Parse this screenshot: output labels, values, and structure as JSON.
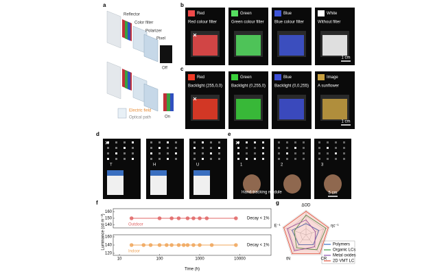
{
  "panels": {
    "a": {
      "label": "a",
      "texts": [
        "Reflector",
        "Color filter",
        "Polarizer",
        "Pixel",
        "Off",
        "On",
        "Electric field",
        "Optical path"
      ]
    },
    "b": {
      "label": "b",
      "items": [
        {
          "name": "Red",
          "caption": "Red colour filter",
          "color": "#ef4a4a"
        },
        {
          "name": "Green",
          "caption": "Green colour filter",
          "color": "#55de60"
        },
        {
          "name": "Blue",
          "caption": "Blue colour filter",
          "color": "#3e55d8"
        },
        {
          "name": "White",
          "caption": "Without filter",
          "color": "#ffffff"
        }
      ],
      "scale": "1 cm"
    },
    "c": {
      "label": "c",
      "items": [
        {
          "name": "Red",
          "caption": "Backlight (255,0,0)",
          "color": "#f03a25"
        },
        {
          "name": "Green",
          "caption": "Backlight (0,255,0)",
          "color": "#3bd13b"
        },
        {
          "name": "Blue",
          "caption": "Backlight (0,0,255)",
          "color": "#3d4fd6"
        },
        {
          "name": "Image",
          "caption": "A sunflower",
          "color": "#c8a040"
        }
      ],
      "scale": "1 cm"
    },
    "d": {
      "label": "d",
      "letters": [
        "T",
        "H",
        "U"
      ]
    },
    "e": {
      "label": "e",
      "numbers": [
        "1",
        "2",
        "3"
      ],
      "module": "Hand-tracking module",
      "scale": "5 cm"
    },
    "f": {
      "label": "f"
    },
    "g": {
      "label": "g"
    }
  },
  "chart_data": [
    {
      "type": "line",
      "ylabel": "Luminance (cd m⁻²)",
      "log_x": true,
      "xlim": [
        7,
        60000
      ],
      "ylim": [
        135,
        165
      ],
      "yticks": [
        140,
        150,
        160
      ],
      "annotation": "Decay < 1%",
      "series": [
        {
          "name": "Outdoor",
          "color": "#e06464",
          "x": [
            20,
            100,
            200,
            300,
            500,
            700,
            1000,
            1500,
            8000
          ],
          "values": [
            150,
            150,
            150,
            150,
            150,
            150,
            150,
            150,
            150
          ]
        }
      ]
    },
    {
      "type": "line",
      "xlabel": "Time (h)",
      "log_x": true,
      "xlim": [
        7,
        60000
      ],
      "xticks": [
        10,
        100,
        1000,
        10000
      ],
      "ylim": [
        115,
        165
      ],
      "yticks": [
        120,
        140,
        160
      ],
      "annotation": "Decay < 1%",
      "series": [
        {
          "name": "Indoor",
          "color": "#f0a458",
          "x": [
            20,
            40,
            60,
            100,
            150,
            200,
            300,
            400,
            500,
            700,
            1000,
            2000,
            8000
          ],
          "values": [
            140,
            140,
            140,
            140,
            140,
            140,
            140,
            140,
            140,
            140,
            140,
            140,
            140
          ]
        }
      ]
    },
    {
      "type": "radar",
      "axes": [
        "ΔOD",
        "ηc⁻¹",
        "CR",
        "tN",
        "E⁻¹"
      ],
      "ylim": [
        0,
        1
      ],
      "rticks": [
        0.25,
        0.5,
        0.75,
        1
      ],
      "series": [
        {
          "name": "Polymers",
          "color": "#3b6fc4",
          "values": [
            0.45,
            0.55,
            0.5,
            0.5,
            0.6
          ]
        },
        {
          "name": "Organic LCs",
          "color": "#3a9a4a",
          "values": [
            0.8,
            0.85,
            0.75,
            0.65,
            0.5
          ]
        },
        {
          "name": "Metal oxides",
          "color": "#8a4fb0",
          "values": [
            0.6,
            0.4,
            0.6,
            0.8,
            0.8
          ]
        },
        {
          "name": "2D VMT LC",
          "color": "#e0503a",
          "values": [
            0.95,
            0.95,
            0.95,
            0.95,
            0.95
          ]
        }
      ]
    }
  ]
}
